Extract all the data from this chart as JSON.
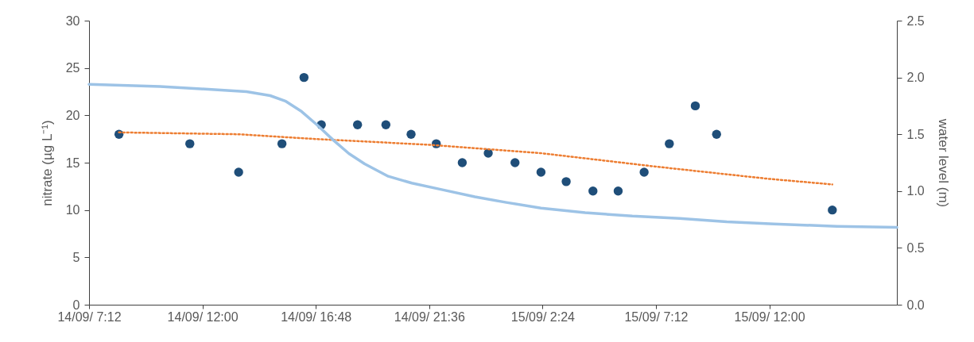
{
  "chart_data": {
    "type": "scatter",
    "ylabel": "nitrate (µg L⁻¹)",
    "y2label": "water level (m)",
    "grid": false,
    "xlim": [
      "--09-14T07:12",
      "--09-15T17:24"
    ],
    "xticks": [
      {
        "value": "--09-14T07:12",
        "label": "14/09/ 7:12"
      },
      {
        "value": "--09-14T12:00",
        "label": "14/09/ 12:00"
      },
      {
        "value": "--09-14T16:48",
        "label": "14/09/ 16:48"
      },
      {
        "value": "--09-14T21:36",
        "label": "14/09/ 21:36"
      },
      {
        "value": "--09-15T02:24",
        "label": "15/09/ 2:24"
      },
      {
        "value": "--09-15T07:12",
        "label": "15/09/ 7:12"
      },
      {
        "value": "--09-15T12:00",
        "label": "15/09/ 12:00"
      }
    ],
    "ylim": [
      0,
      30
    ],
    "yticks": [
      0,
      5,
      10,
      15,
      20,
      25,
      30
    ],
    "y2lim": [
      0,
      2.5
    ],
    "y2ticks": [
      {
        "value": 0,
        "label": "0.0"
      },
      0.5,
      {
        "value": 1,
        "label": "1.0"
      },
      1.5,
      {
        "value": 2,
        "label": "2.0"
      },
      2.5
    ],
    "series": [
      {
        "marker": "circle",
        "color": "#1f4e79",
        "x": [
          "--09-14T08:28",
          "--09-14T11:28",
          "--09-14T13:32",
          "--09-14T15:22",
          "--09-14T16:18",
          "--09-14T17:02",
          "--09-14T18:34",
          "--09-14T19:46",
          "--09-14T20:50",
          "--09-14T21:54",
          "--09-14T23:00",
          "--09-15T00:06",
          "--09-15T01:14",
          "--09-15T02:20",
          "--09-15T03:24",
          "--09-15T04:32",
          "--09-15T05:36",
          "--09-15T06:42",
          "--09-15T07:46",
          "--09-15T08:52",
          "--09-15T09:46",
          "--09-15T14:40"
        ],
        "values": [
          18,
          17,
          14,
          17,
          24,
          19,
          19,
          19,
          18,
          17,
          15,
          16,
          15,
          14,
          13,
          12,
          12,
          14,
          17,
          21,
          18,
          10
        ]
      },
      {
        "type": "line",
        "line_style": "dotted",
        "color": "#ed7d31",
        "x": [
          "--09-14T08:28",
          "--09-14T13:32",
          "--09-14T16:46",
          "--09-14T21:32",
          "--09-15T02:20",
          "--09-15T07:08",
          "--09-15T11:56",
          "--09-15T14:40"
        ],
        "values": [
          18.2,
          18.0,
          17.5,
          16.9,
          16.0,
          14.6,
          13.3,
          12.7
        ]
      },
      {
        "type": "line",
        "axis": "y2",
        "color": "#9dc3e6",
        "x": [
          "--09-14T07:12",
          "--09-14T10:12",
          "--09-14T11:56",
          "--09-14T13:52",
          "--09-14T14:52",
          "--09-14T15:32",
          "--09-14T16:12",
          "--09-14T16:52",
          "--09-14T17:32",
          "--09-14T18:12",
          "--09-14T18:52",
          "--09-14T19:52",
          "--09-14T20:52",
          "--09-14T22:12",
          "--09-14T23:32",
          "--09-15T00:52",
          "--09-15T02:20",
          "--09-15T04:12",
          "--09-15T06:12",
          "--09-15T08:12",
          "--09-15T10:12",
          "--09-15T12:12",
          "--09-15T14:52",
          "--09-15T17:24"
        ],
        "values": [
          1.94,
          1.92,
          1.9,
          1.875,
          1.84,
          1.79,
          1.7,
          1.58,
          1.45,
          1.33,
          1.24,
          1.13,
          1.07,
          1.01,
          0.95,
          0.9,
          0.85,
          0.81,
          0.78,
          0.76,
          0.73,
          0.71,
          0.69,
          0.68
        ]
      }
    ]
  }
}
